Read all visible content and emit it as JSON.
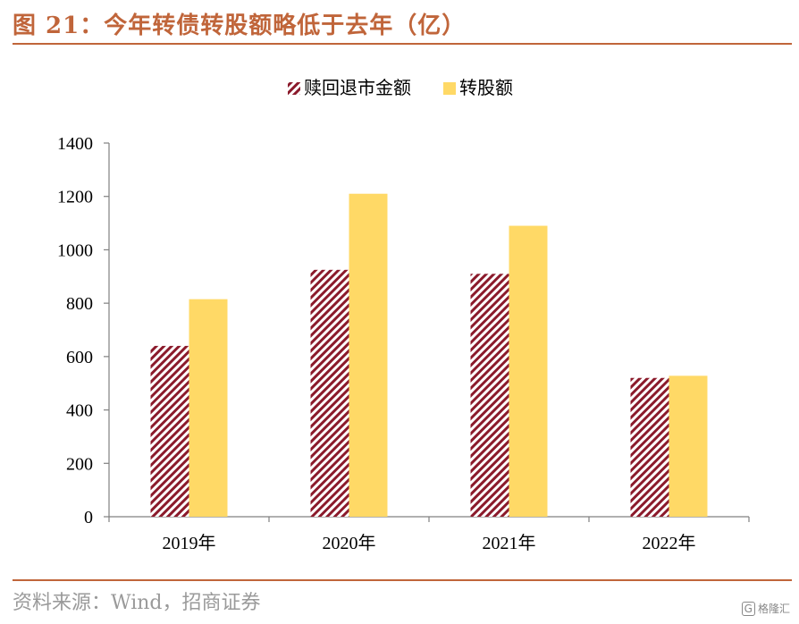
{
  "title": "图 21：今年转债转股额略低于去年（亿）",
  "source": "资料来源：Wind，招商证券",
  "watermark": "格隆汇",
  "colors": {
    "accent": "#c0653a",
    "series1": "#8b1a2b",
    "series2": "#ffd966"
  },
  "chart_data": {
    "type": "bar",
    "categories": [
      "2019年",
      "2020年",
      "2021年",
      "2022年"
    ],
    "series": [
      {
        "name": "赎回退市金额",
        "values": [
          640,
          925,
          910,
          520
        ],
        "pattern": "diagonal-hatch"
      },
      {
        "name": "转股额",
        "values": [
          815,
          1210,
          1090,
          528
        ]
      }
    ],
    "ylim": [
      0,
      1400
    ],
    "yticks": [
      0,
      200,
      400,
      600,
      800,
      1000,
      1200,
      1400
    ],
    "legend_position": "top-center",
    "grid": false
  }
}
